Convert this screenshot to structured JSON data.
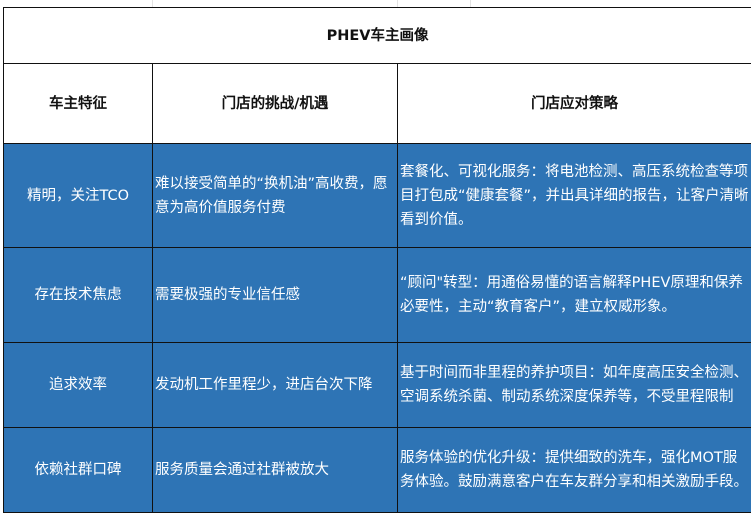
{
  "title": "PHEV车主画像",
  "headers": [
    "车主特征",
    "门店的挑战/机遇",
    "门店应对策略"
  ],
  "rows": [
    [
      "精明，关注TCO",
      "难以接受简单的“换机油”高收费，愿意为高价值服务付费",
      "套餐化、可视化服务：将电池检测、高压系统检查等项目打包成“健康套餐”，并出具详细的报告，让客户清晰看到价值。"
    ],
    [
      "存在技术焦虑",
      "需要极强的专业信任感",
      "“顾问\"转型：用通俗易懂的语言解释PHEV原理和保养必要性，主动“教育客户”，建立权威形象。"
    ],
    [
      "追求效率",
      "发动机工作里程少，进店台次下降",
      "基于时间而非里程的养护项目：如年度高压安全检测、空调系统杀菌、制动系统深度保养等，不受里程限制"
    ],
    [
      "依赖社群口碑",
      "服务质量会通过社群被放大",
      "服务体验的优化升级：提供细致的洗车，强化MOT服务体验。鼓励满意客户在车友群分享和相关激励手段。"
    ]
  ],
  "colors": {
    "row_fill": "#2e74b5",
    "border": "#111111"
  }
}
